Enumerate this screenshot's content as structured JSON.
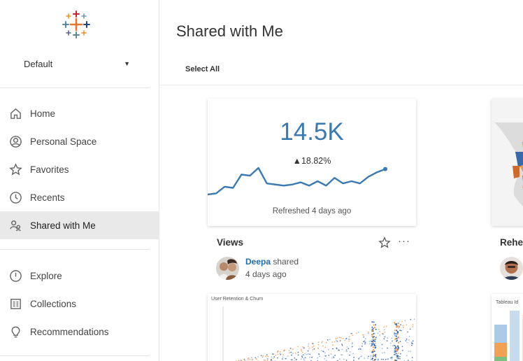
{
  "sidebar": {
    "site": "Default",
    "nav_primary": [
      {
        "label": "Home",
        "icon": "home-icon"
      },
      {
        "label": "Personal Space",
        "icon": "user-icon"
      },
      {
        "label": "Favorites",
        "icon": "star-icon"
      },
      {
        "label": "Recents",
        "icon": "clock-icon"
      },
      {
        "label": "Shared with Me",
        "icon": "shared-users-icon",
        "active": true
      }
    ],
    "nav_secondary": [
      {
        "label": "Explore",
        "icon": "compass-icon"
      },
      {
        "label": "Collections",
        "icon": "collections-icon"
      },
      {
        "label": "Recommendations",
        "icon": "lightbulb-icon"
      }
    ]
  },
  "header": {
    "title": "Shared with Me",
    "select_all": "Select All"
  },
  "cards": [
    {
      "kpi_value": "14.5K",
      "kpi_delta": "▲18.82%",
      "sparkline": [
        30,
        31,
        37,
        36,
        48,
        47,
        54,
        40,
        39,
        38,
        39,
        41,
        38,
        42,
        38,
        45,
        40,
        42,
        40,
        46,
        50,
        53
      ],
      "refreshed": "Refreshed 4 days ago",
      "title": "Views",
      "owner": "Deepa",
      "shared_word": "shared",
      "shared_time": "4 days ago"
    },
    {
      "title": "Rehe"
    }
  ],
  "thumbnails": {
    "scatter_title": "User Retention & Churn",
    "bars_title": "Tableau Id"
  },
  "colors": {
    "accent": "#3a7ab2",
    "link": "#1f6fb3",
    "active_nav": "#e9e9e9",
    "orange": "#f2a154"
  }
}
